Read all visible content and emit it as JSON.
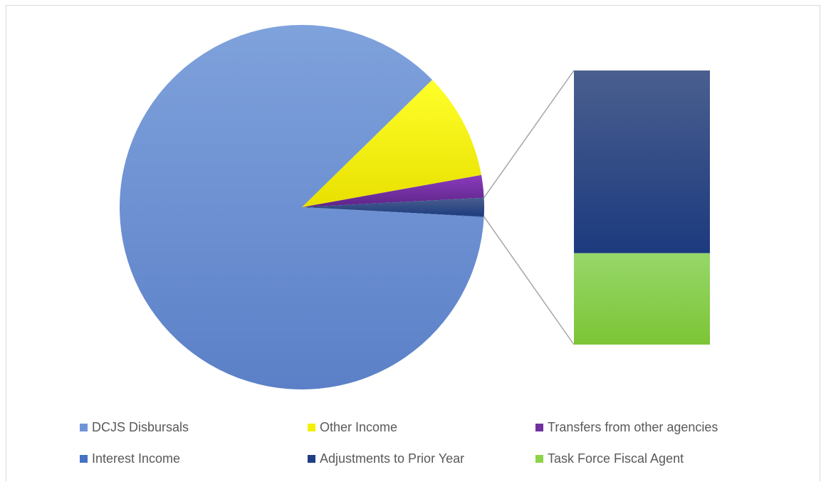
{
  "chart_data": {
    "type": "pie",
    "subtype": "bar-of-pie",
    "title": "",
    "legend_position": "bottom",
    "slices": [
      {
        "label": "DCJS Disbursals",
        "value": 86.8,
        "color": "#6f95d6",
        "color_light": "#7fa2dc",
        "color_dark": "#5b80c7"
      },
      {
        "label": "Other Income",
        "value": 9.5,
        "color": "#f5ef00",
        "color_light": "#ffff2a",
        "color_dark": "#e8e000"
      },
      {
        "label": "Transfers from other agencies",
        "value": 2.0,
        "color": "#7030a0",
        "color_light": "#8a3bbd",
        "color_dark": "#5d2587"
      },
      {
        "label": "Interest Income",
        "value": 0.05,
        "color": "#4472c4",
        "color_light": "#5b87d6",
        "color_dark": "#3a62b0",
        "in_bar": false
      },
      {
        "label": "Adjustments to Prior Year",
        "value": 1.1,
        "color": "#1f3f85",
        "color_light": "#4a5f8f",
        "color_dark": "#1c3a7e",
        "in_bar": true
      },
      {
        "label": "Task Force Fiscal Agent",
        "value": 0.55,
        "color": "#8cd449",
        "color_light": "#97d76a",
        "color_dark": "#7cc535",
        "in_bar": true
      }
    ]
  }
}
